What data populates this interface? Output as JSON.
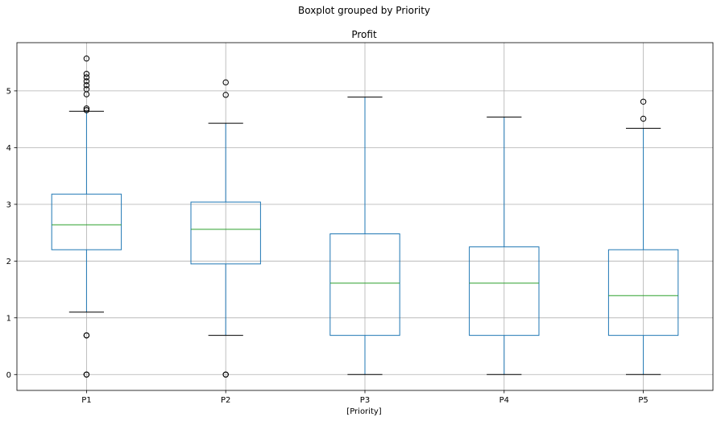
{
  "colors": {
    "box": "#1f77b4",
    "median": "#2ca02c",
    "cap": "#000000",
    "flier": "#000000",
    "grid": "#b0b0b0"
  },
  "chart_data": {
    "type": "box",
    "title": "Boxplot grouped by Priority",
    "subtitle": "Profit",
    "xlabel": "[Priority]",
    "ylabel": "",
    "grid": true,
    "ylim": [
      -0.28,
      5.85
    ],
    "yticks": [
      0,
      1,
      2,
      3,
      4,
      5
    ],
    "categories": [
      "P1",
      "P2",
      "P3",
      "P4",
      "P5"
    ],
    "boxes": [
      {
        "name": "P1",
        "whislo": 1.1,
        "q1": 2.2,
        "med": 2.64,
        "q3": 3.18,
        "whishi": 4.64,
        "fliers": [
          0.0,
          0.0,
          0.69,
          0.69,
          4.66,
          4.69,
          4.94,
          5.03,
          5.1,
          5.17,
          5.24,
          5.3,
          5.57
        ]
      },
      {
        "name": "P2",
        "whislo": 0.69,
        "q1": 1.95,
        "med": 2.56,
        "q3": 3.04,
        "whishi": 4.43,
        "fliers": [
          0.0,
          0.0,
          4.93,
          5.15
        ]
      },
      {
        "name": "P3",
        "whislo": 0.0,
        "q1": 0.69,
        "med": 1.61,
        "q3": 2.48,
        "whishi": 4.89,
        "fliers": []
      },
      {
        "name": "P4",
        "whislo": 0.0,
        "q1": 0.69,
        "med": 1.61,
        "q3": 2.25,
        "whishi": 4.54,
        "fliers": []
      },
      {
        "name": "P5",
        "whislo": 0.0,
        "q1": 0.69,
        "med": 1.39,
        "q3": 2.2,
        "whishi": 4.34,
        "fliers": [
          4.51,
          4.81
        ]
      }
    ]
  }
}
